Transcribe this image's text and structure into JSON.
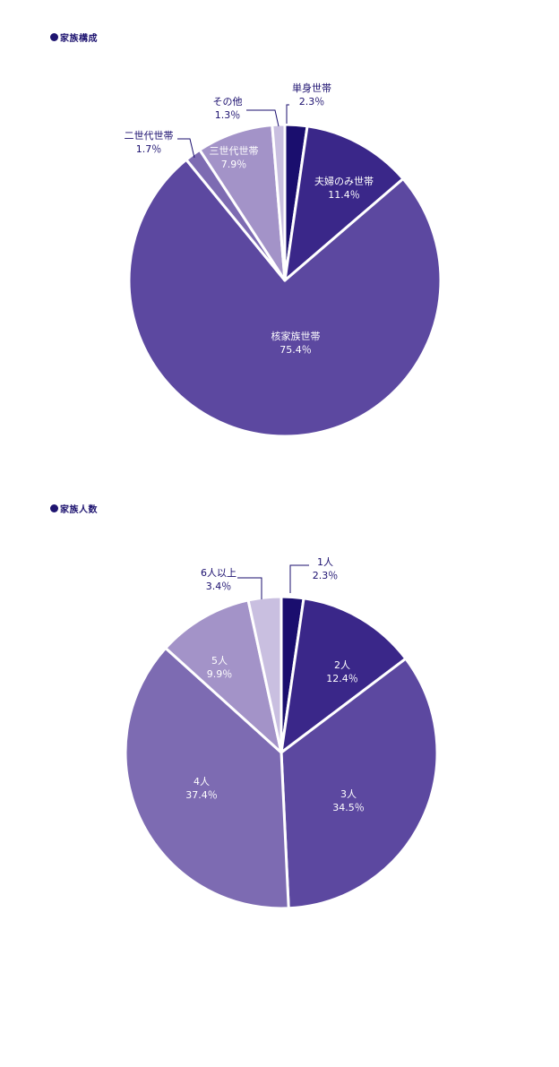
{
  "sections": [
    {
      "title": "家族構成"
    },
    {
      "title": "家族人数"
    }
  ],
  "chart_data": [
    {
      "type": "pie",
      "title": "家族構成",
      "slices": [
        {
          "label": "単身世帯",
          "value": 2.3,
          "display": "2.3％",
          "color": "#1a0e6e",
          "text_color": "#1a0e6e"
        },
        {
          "label": "夫婦のみ世帯",
          "value": 11.4,
          "display": "11.4％",
          "color": "#3a2789",
          "text_color": "#ffffff"
        },
        {
          "label": "核家族世帯",
          "value": 75.4,
          "display": "75.4％",
          "color": "#5c48a0",
          "text_color": "#ffffff"
        },
        {
          "label": "二世代世帯",
          "value": 1.7,
          "display": "1.7％",
          "color": "#7d6bb2",
          "text_color": "#1a0e6e"
        },
        {
          "label": "三世代世帯",
          "value": 7.9,
          "display": "7.9％",
          "color": "#a393c8",
          "text_color": "#ffffff"
        },
        {
          "label": "その他",
          "value": 1.3,
          "display": "1.3％",
          "color": "#c9bfe0",
          "text_color": "#1a0e6e"
        }
      ]
    },
    {
      "type": "pie",
      "title": "家族人数",
      "slices": [
        {
          "label": "1人",
          "value": 2.3,
          "display": "2.3％",
          "color": "#1a0e6e",
          "text_color": "#1a0e6e"
        },
        {
          "label": "2人",
          "value": 12.4,
          "display": "12.4％",
          "color": "#3a2789",
          "text_color": "#ffffff"
        },
        {
          "label": "3人",
          "value": 34.5,
          "display": "34.5％",
          "color": "#5c48a0",
          "text_color": "#ffffff"
        },
        {
          "label": "4人",
          "value": 37.4,
          "display": "37.4％",
          "color": "#7d6bb2",
          "text_color": "#ffffff"
        },
        {
          "label": "5人",
          "value": 9.9,
          "display": "9.9％",
          "color": "#a393c8",
          "text_color": "#ffffff"
        },
        {
          "label": "6人以上",
          "value": 3.4,
          "display": "3.4％",
          "color": "#c9bfe0",
          "text_color": "#1a0e6e"
        }
      ]
    }
  ]
}
